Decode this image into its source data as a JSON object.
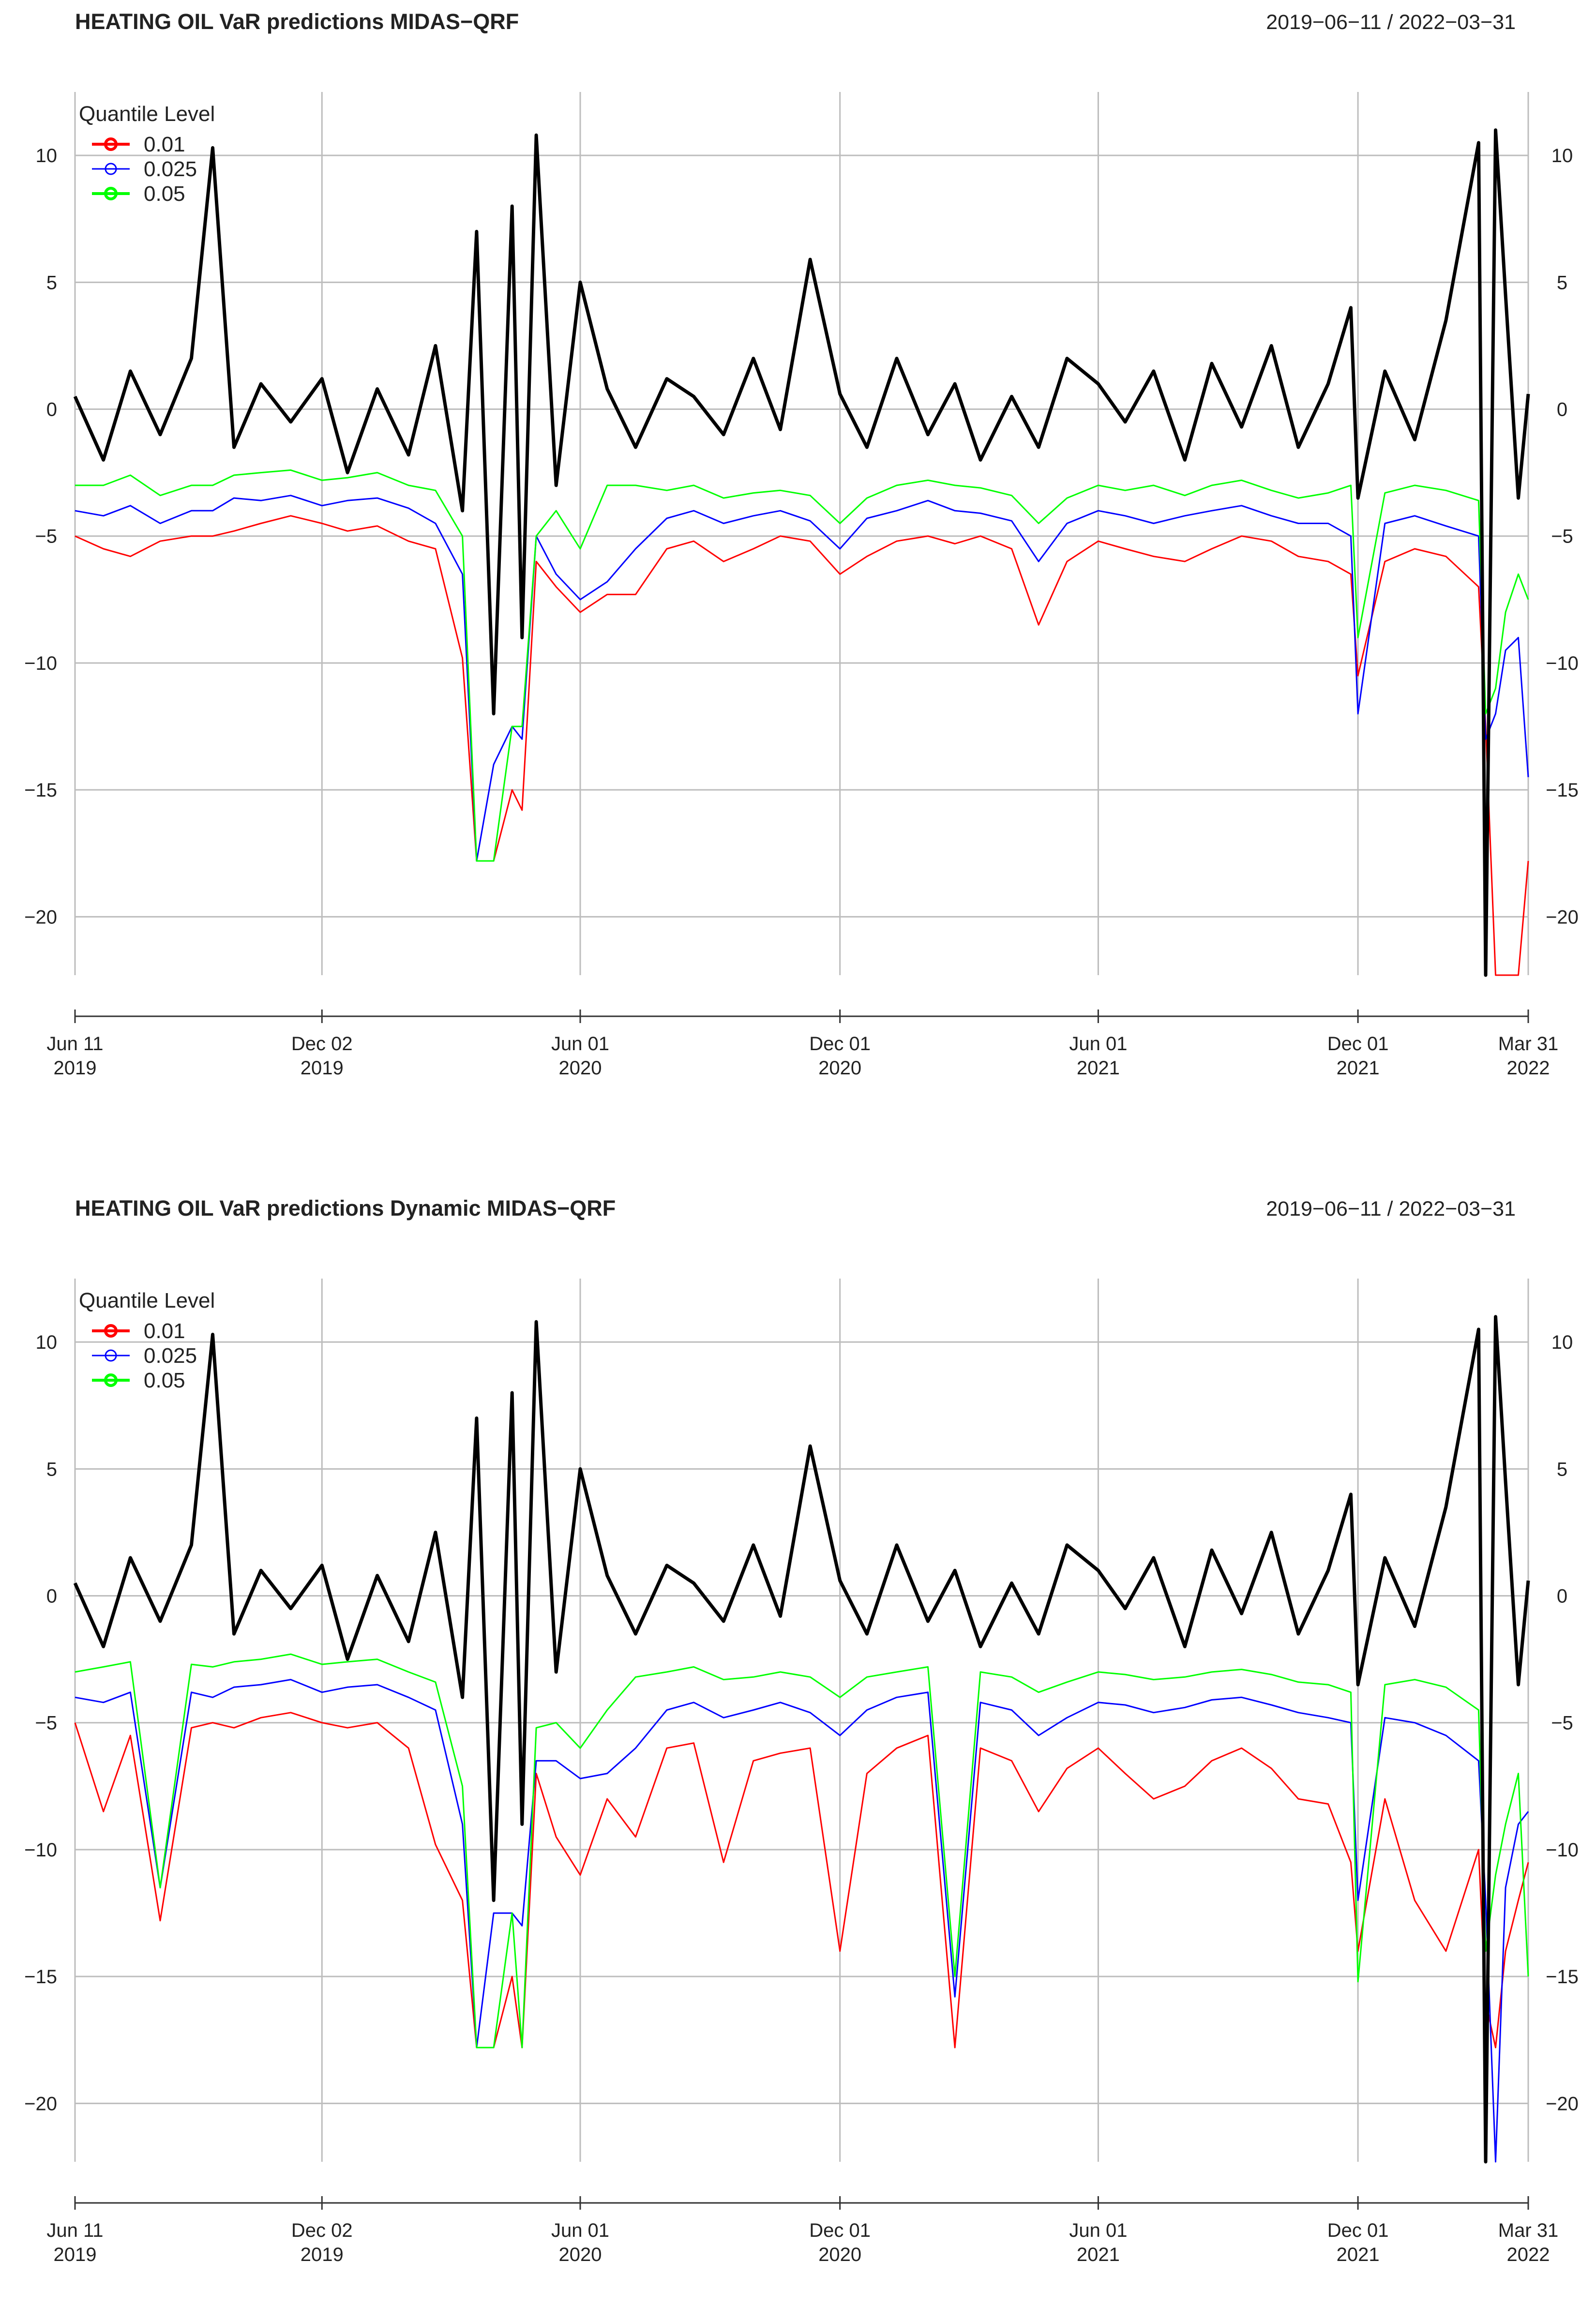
{
  "chart_data": [
    {
      "type": "line",
      "title": "HEATING OIL VaR predictions MIDAS−QRF",
      "date_range": "2019−06−11 / 2022−03−31",
      "xlabel": "",
      "ylabel": "",
      "ylim": [
        -22.3,
        12.5
      ],
      "grid": true,
      "legend_position": "top-left",
      "legend_title": "Quantile Level",
      "y_ticks": [
        {
          "value": 10,
          "label": "10"
        },
        {
          "value": 5,
          "label": "5"
        },
        {
          "value": 0,
          "label": "0"
        },
        {
          "value": -5,
          "label": "−5"
        },
        {
          "value": -10,
          "label": "−10"
        },
        {
          "value": -15,
          "label": "−15"
        },
        {
          "value": -20,
          "label": "−20"
        }
      ],
      "x_ticks": [
        {
          "date": "2019-06-11",
          "line1": "Jun 11",
          "line2": "2019"
        },
        {
          "date": "2019-12-02",
          "line1": "Dec 02",
          "line2": "2019"
        },
        {
          "date": "2020-06-01",
          "line1": "Jun 01",
          "line2": "2020"
        },
        {
          "date": "2020-12-01",
          "line1": "Dec 01",
          "line2": "2020"
        },
        {
          "date": "2021-06-01",
          "line1": "Jun 01",
          "line2": "2021"
        },
        {
          "date": "2021-12-01",
          "line1": "Dec 01",
          "line2": "2021"
        },
        {
          "date": "2022-03-31",
          "line1": "Mar 31",
          "line2": "2022"
        }
      ],
      "x": [
        "2019-06-11",
        "2019-07-01",
        "2019-07-20",
        "2019-08-10",
        "2019-09-01",
        "2019-09-16",
        "2019-10-01",
        "2019-10-20",
        "2019-11-10",
        "2019-12-02",
        "2019-12-20",
        "2020-01-10",
        "2020-02-01",
        "2020-02-20",
        "2020-03-10",
        "2020-03-20",
        "2020-04-01",
        "2020-04-14",
        "2020-04-21",
        "2020-05-01",
        "2020-05-15",
        "2020-06-01",
        "2020-06-20",
        "2020-07-10",
        "2020-08-01",
        "2020-08-20",
        "2020-09-10",
        "2020-10-01",
        "2020-10-20",
        "2020-11-10",
        "2020-12-01",
        "2020-12-20",
        "2021-01-10",
        "2021-02-01",
        "2021-02-20",
        "2021-03-10",
        "2021-04-01",
        "2021-04-20",
        "2021-05-10",
        "2021-06-01",
        "2021-06-20",
        "2021-07-10",
        "2021-08-01",
        "2021-08-20",
        "2021-09-10",
        "2021-10-01",
        "2021-10-20",
        "2021-11-10",
        "2021-11-26",
        "2021-12-01",
        "2021-12-20",
        "2022-01-10",
        "2022-02-01",
        "2022-02-24",
        "2022-03-01",
        "2022-03-08",
        "2022-03-15",
        "2022-03-24",
        "2022-03-31"
      ],
      "series": [
        {
          "role": "returns",
          "color": "#000000",
          "values": [
            0.5,
            -2.0,
            1.5,
            -1.0,
            2.0,
            10.3,
            -1.5,
            1.0,
            -0.5,
            1.2,
            -2.5,
            0.8,
            -1.8,
            2.5,
            -4.0,
            7.0,
            -12.0,
            8.0,
            -9.0,
            10.8,
            -3.0,
            5.0,
            0.8,
            -1.5,
            1.2,
            0.5,
            -1.0,
            2.0,
            -0.8,
            5.9,
            0.6,
            -1.5,
            2.0,
            -1.0,
            1.0,
            -2.0,
            0.5,
            -1.5,
            2.0,
            1.0,
            -0.5,
            1.5,
            -2.0,
            1.8,
            -0.7,
            2.5,
            -1.5,
            1.0,
            4.0,
            -3.5,
            1.5,
            -1.2,
            3.5,
            10.5,
            -22.3,
            11.0,
            4.5,
            -3.5,
            0.6
          ]
        },
        {
          "name": "0.01",
          "color": "#ff0000",
          "values": [
            -5.0,
            -5.5,
            -5.8,
            -5.2,
            -5.0,
            -5.0,
            -4.8,
            -4.5,
            -4.2,
            -4.5,
            -4.8,
            -4.6,
            -5.2,
            -5.5,
            -9.8,
            -17.8,
            -17.8,
            -15.0,
            -15.8,
            -6.0,
            -7.0,
            -8.0,
            -7.3,
            -7.3,
            -5.5,
            -5.2,
            -6.0,
            -5.5,
            -5.0,
            -5.2,
            -6.5,
            -5.8,
            -5.2,
            -5.0,
            -5.3,
            -5.0,
            -5.5,
            -8.5,
            -6.0,
            -5.2,
            -5.5,
            -5.8,
            -6.0,
            -5.5,
            -5.0,
            -5.2,
            -5.8,
            -6.0,
            -6.5,
            -10.5,
            -6.0,
            -5.5,
            -5.8,
            -7.0,
            -12.5,
            -22.3,
            -22.3,
            -22.3,
            -17.8
          ]
        },
        {
          "name": "0.025",
          "color": "#0000ff",
          "values": [
            -4.0,
            -4.2,
            -3.8,
            -4.5,
            -4.0,
            -4.0,
            -3.5,
            -3.6,
            -3.4,
            -3.8,
            -3.6,
            -3.5,
            -3.9,
            -4.5,
            -6.5,
            -17.8,
            -14.0,
            -12.5,
            -13.0,
            -5.0,
            -6.5,
            -7.5,
            -6.8,
            -5.5,
            -4.3,
            -4.0,
            -4.5,
            -4.2,
            -4.0,
            -4.4,
            -5.5,
            -4.3,
            -4.0,
            -3.6,
            -4.0,
            -4.1,
            -4.4,
            -6.0,
            -4.5,
            -4.0,
            -4.2,
            -4.5,
            -4.2,
            -4.0,
            -3.8,
            -4.2,
            -4.5,
            -4.5,
            -5.0,
            -12.0,
            -4.5,
            -4.2,
            -4.6,
            -5.0,
            -13.0,
            -12.0,
            -9.5,
            -9.0,
            -14.5
          ]
        },
        {
          "name": "0.05",
          "color": "#00ff00",
          "values": [
            -3.0,
            -3.0,
            -2.6,
            -3.4,
            -3.0,
            -3.0,
            -2.6,
            -2.5,
            -2.4,
            -2.8,
            -2.7,
            -2.5,
            -3.0,
            -3.2,
            -5.0,
            -17.8,
            -17.8,
            -12.5,
            -12.5,
            -5.0,
            -4.0,
            -5.5,
            -3.0,
            -3.0,
            -3.2,
            -3.0,
            -3.5,
            -3.3,
            -3.2,
            -3.4,
            -4.5,
            -3.5,
            -3.0,
            -2.8,
            -3.0,
            -3.1,
            -3.4,
            -4.5,
            -3.5,
            -3.0,
            -3.2,
            -3.0,
            -3.4,
            -3.0,
            -2.8,
            -3.2,
            -3.5,
            -3.3,
            -3.0,
            -9.0,
            -3.3,
            -3.0,
            -3.2,
            -3.6,
            -12.0,
            -11.0,
            -8.0,
            -6.5,
            -7.5
          ]
        }
      ]
    },
    {
      "type": "line",
      "title": "HEATING OIL VaR predictions Dynamic MIDAS−QRF",
      "date_range": "2019−06−11 / 2022−03−31",
      "xlabel": "",
      "ylabel": "",
      "ylim": [
        -22.3,
        12.5
      ],
      "grid": true,
      "legend_position": "top-left",
      "legend_title": "Quantile Level",
      "y_ticks": [
        {
          "value": 10,
          "label": "10"
        },
        {
          "value": 5,
          "label": "5"
        },
        {
          "value": 0,
          "label": "0"
        },
        {
          "value": -5,
          "label": "−5"
        },
        {
          "value": -10,
          "label": "−10"
        },
        {
          "value": -15,
          "label": "−15"
        },
        {
          "value": -20,
          "label": "−20"
        }
      ],
      "x_ticks": [
        {
          "date": "2019-06-11",
          "line1": "Jun 11",
          "line2": "2019"
        },
        {
          "date": "2019-12-02",
          "line1": "Dec 02",
          "line2": "2019"
        },
        {
          "date": "2020-06-01",
          "line1": "Jun 01",
          "line2": "2020"
        },
        {
          "date": "2020-12-01",
          "line1": "Dec 01",
          "line2": "2020"
        },
        {
          "date": "2021-06-01",
          "line1": "Jun 01",
          "line2": "2021"
        },
        {
          "date": "2021-12-01",
          "line1": "Dec 01",
          "line2": "2021"
        },
        {
          "date": "2022-03-31",
          "line1": "Mar 31",
          "line2": "2022"
        }
      ],
      "x": [
        "2019-06-11",
        "2019-07-01",
        "2019-07-20",
        "2019-08-10",
        "2019-09-01",
        "2019-09-16",
        "2019-10-01",
        "2019-10-20",
        "2019-11-10",
        "2019-12-02",
        "2019-12-20",
        "2020-01-10",
        "2020-02-01",
        "2020-02-20",
        "2020-03-10",
        "2020-03-20",
        "2020-04-01",
        "2020-04-14",
        "2020-04-21",
        "2020-05-01",
        "2020-05-15",
        "2020-06-01",
        "2020-06-20",
        "2020-07-10",
        "2020-08-01",
        "2020-08-20",
        "2020-09-10",
        "2020-10-01",
        "2020-10-20",
        "2020-11-10",
        "2020-12-01",
        "2020-12-20",
        "2021-01-10",
        "2021-02-01",
        "2021-02-20",
        "2021-03-10",
        "2021-04-01",
        "2021-04-20",
        "2021-05-10",
        "2021-06-01",
        "2021-06-20",
        "2021-07-10",
        "2021-08-01",
        "2021-08-20",
        "2021-09-10",
        "2021-10-01",
        "2021-10-20",
        "2021-11-10",
        "2021-11-26",
        "2021-12-01",
        "2021-12-20",
        "2022-01-10",
        "2022-02-01",
        "2022-02-24",
        "2022-03-01",
        "2022-03-08",
        "2022-03-15",
        "2022-03-24",
        "2022-03-31"
      ],
      "series": [
        {
          "role": "returns",
          "color": "#000000",
          "values": [
            0.5,
            -2.0,
            1.5,
            -1.0,
            2.0,
            10.3,
            -1.5,
            1.0,
            -0.5,
            1.2,
            -2.5,
            0.8,
            -1.8,
            2.5,
            -4.0,
            7.0,
            -12.0,
            8.0,
            -9.0,
            10.8,
            -3.0,
            5.0,
            0.8,
            -1.5,
            1.2,
            0.5,
            -1.0,
            2.0,
            -0.8,
            5.9,
            0.6,
            -1.5,
            2.0,
            -1.0,
            1.0,
            -2.0,
            0.5,
            -1.5,
            2.0,
            1.0,
            -0.5,
            1.5,
            -2.0,
            1.8,
            -0.7,
            2.5,
            -1.5,
            1.0,
            4.0,
            -3.5,
            1.5,
            -1.2,
            3.5,
            10.5,
            -22.3,
            11.0,
            4.5,
            -3.5,
            0.6
          ]
        },
        {
          "name": "0.01",
          "color": "#ff0000",
          "values": [
            -5.0,
            -8.5,
            -5.5,
            -12.8,
            -5.2,
            -5.0,
            -5.2,
            -4.8,
            -4.6,
            -5.0,
            -5.2,
            -5.0,
            -6.0,
            -9.8,
            -12.0,
            -17.8,
            -17.8,
            -15.0,
            -17.8,
            -7.0,
            -9.5,
            -11.0,
            -8.0,
            -9.5,
            -6.0,
            -5.8,
            -10.5,
            -6.5,
            -6.2,
            -6.0,
            -14.0,
            -7.0,
            -6.0,
            -5.5,
            -17.8,
            -6.0,
            -6.5,
            -8.5,
            -6.8,
            -6.0,
            -7.0,
            -8.0,
            -7.5,
            -6.5,
            -6.0,
            -6.8,
            -8.0,
            -8.2,
            -10.5,
            -14.0,
            -8.0,
            -12.0,
            -14.0,
            -10.0,
            -16.0,
            -17.8,
            -14.0,
            -12.0,
            -10.5
          ]
        },
        {
          "name": "0.025",
          "color": "#0000ff",
          "values": [
            -4.0,
            -4.2,
            -3.8,
            -11.5,
            -3.8,
            -4.0,
            -3.6,
            -3.5,
            -3.3,
            -3.8,
            -3.6,
            -3.5,
            -4.0,
            -4.5,
            -9.0,
            -17.8,
            -12.5,
            -12.5,
            -13.0,
            -6.5,
            -6.5,
            -7.2,
            -7.0,
            -6.0,
            -4.5,
            -4.2,
            -4.8,
            -4.5,
            -4.2,
            -4.6,
            -5.5,
            -4.5,
            -4.0,
            -3.8,
            -15.8,
            -4.2,
            -4.5,
            -5.5,
            -4.8,
            -4.2,
            -4.3,
            -4.6,
            -4.4,
            -4.1,
            -4.0,
            -4.3,
            -4.6,
            -4.8,
            -5.0,
            -12.0,
            -4.8,
            -5.0,
            -5.5,
            -6.5,
            -12.0,
            -22.3,
            -11.5,
            -9.0,
            -8.5
          ]
        },
        {
          "name": "0.05",
          "color": "#00ff00",
          "values": [
            -3.0,
            -2.8,
            -2.6,
            -11.5,
            -2.7,
            -2.8,
            -2.6,
            -2.5,
            -2.3,
            -2.7,
            -2.6,
            -2.5,
            -3.0,
            -3.4,
            -7.5,
            -17.8,
            -17.8,
            -12.5,
            -17.8,
            -5.2,
            -5.0,
            -6.0,
            -4.5,
            -3.2,
            -3.0,
            -2.8,
            -3.3,
            -3.2,
            -3.0,
            -3.2,
            -4.0,
            -3.2,
            -3.0,
            -2.8,
            -15.0,
            -3.0,
            -3.2,
            -3.8,
            -3.4,
            -3.0,
            -3.1,
            -3.3,
            -3.2,
            -3.0,
            -2.9,
            -3.1,
            -3.4,
            -3.5,
            -3.8,
            -15.2,
            -3.5,
            -3.3,
            -3.6,
            -4.5,
            -14.0,
            -11.0,
            -9.0,
            -7.0,
            -15.0
          ]
        }
      ]
    }
  ]
}
